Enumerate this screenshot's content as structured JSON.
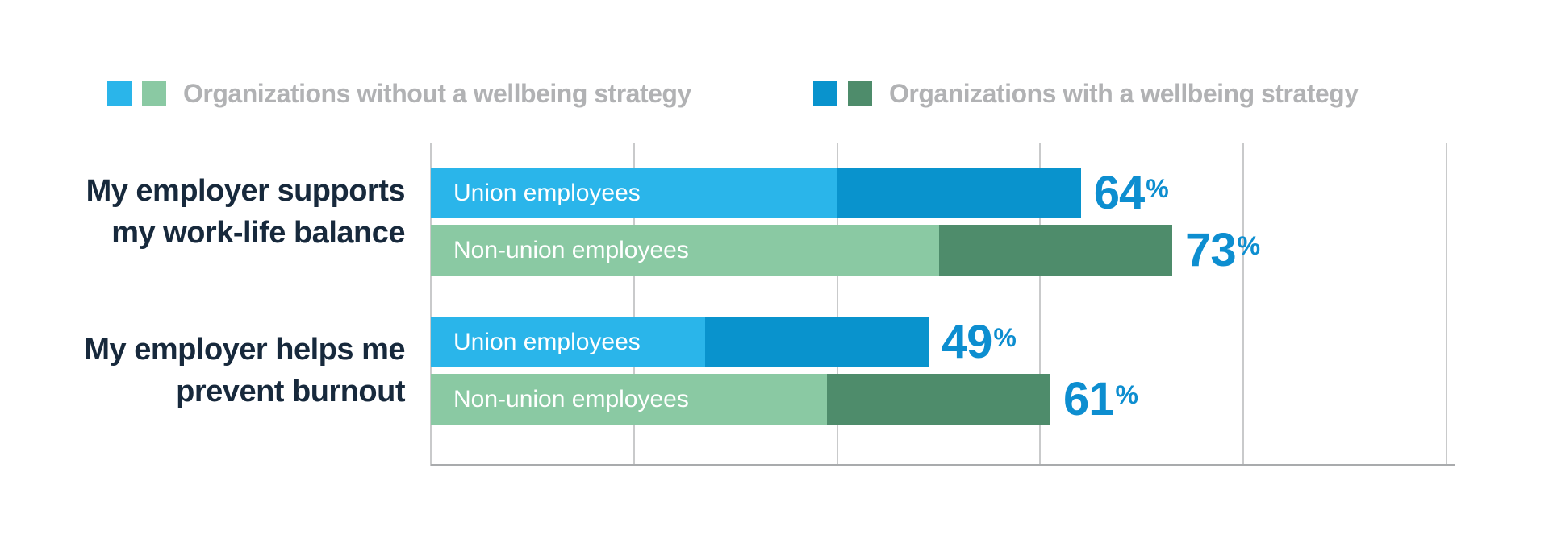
{
  "page": {
    "background": "#ffffff"
  },
  "legend": {
    "text_color": "#b1b2b4",
    "items": [
      {
        "label": "Organizations without a wellbeing strategy",
        "swatch_colors": [
          "#2ab5ea",
          "#8ac9a3"
        ]
      },
      {
        "label": "Organizations with a wellbeing strategy",
        "swatch_colors": [
          "#0993cd",
          "#4e8c6b"
        ]
      }
    ]
  },
  "chart_data": {
    "type": "bar",
    "orientation": "horizontal",
    "unit": "%",
    "xlim": [
      0,
      100
    ],
    "gridlines": {
      "visible": true,
      "step_pct": 20,
      "tick_labels_visible": false
    },
    "legend_position": "top",
    "value_label_color": "#0d8ed0",
    "category_label_color": "#17293c",
    "series_meaning": {
      "light_segment": "Organizations without a wellbeing strategy",
      "dark_segment": "Organizations with a wellbeing strategy"
    },
    "series_colors": {
      "union": {
        "without_strategy": "#2ab5ea",
        "with_strategy": "#0993cd"
      },
      "non_union": {
        "without_strategy": "#8ac9a3",
        "with_strategy": "#4e8c6b"
      }
    },
    "groups": [
      {
        "category": "My employer supports my work-life balance",
        "category_lines": [
          "My employer supports",
          "my work-life balance"
        ],
        "bars": [
          {
            "label": "Union employees",
            "series": "union",
            "without_strategy_pct": 40,
            "with_strategy_pct": 64
          },
          {
            "label": "Non-union employees",
            "series": "non_union",
            "without_strategy_pct": 50,
            "with_strategy_pct": 73
          }
        ]
      },
      {
        "category": "My employer helps me prevent burnout",
        "category_lines": [
          "My employer helps me",
          "prevent burnout"
        ],
        "bars": [
          {
            "label": "Union employees",
            "series": "union",
            "without_strategy_pct": 27,
            "with_strategy_pct": 49
          },
          {
            "label": "Non-union employees",
            "series": "non_union",
            "without_strategy_pct": 39,
            "with_strategy_pct": 61
          }
        ]
      }
    ]
  }
}
